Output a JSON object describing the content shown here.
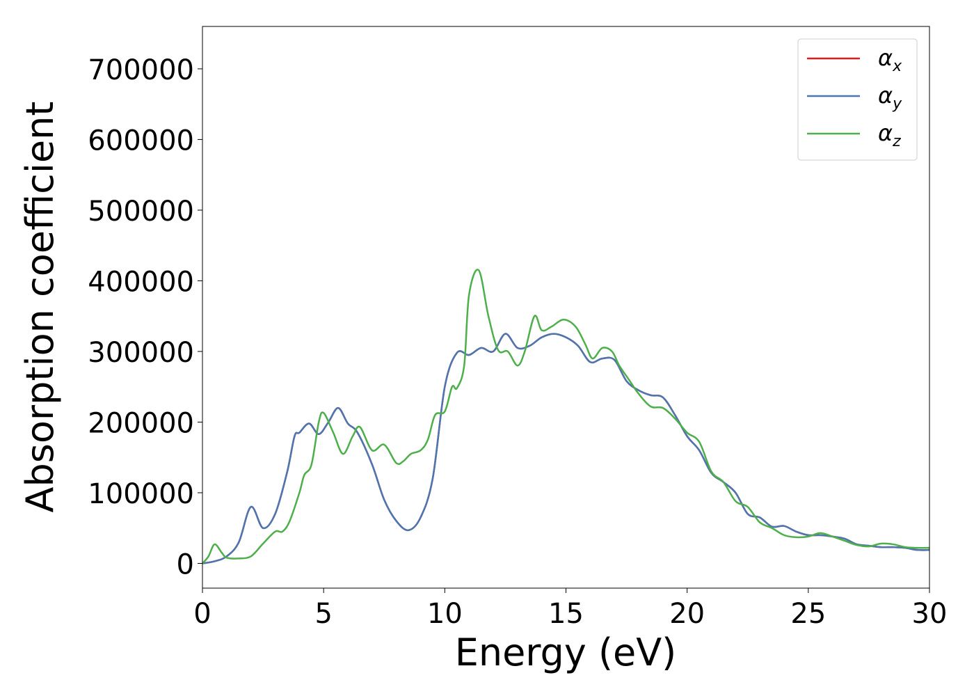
{
  "chart_data": {
    "type": "line",
    "xlabel": "Energy (eV)",
    "ylabel": "Absorption coefficient",
    "xlim": [
      0,
      30
    ],
    "ylim": [
      -35000,
      760000
    ],
    "xticks": [
      0,
      5,
      10,
      15,
      20,
      25,
      30
    ],
    "yticks": [
      0,
      100000,
      200000,
      300000,
      400000,
      500000,
      600000,
      700000
    ],
    "grid": false,
    "legend_position": "top-right",
    "series": [
      {
        "name": "α",
        "subscript": "x",
        "color": "#e41a1c",
        "x": [
          0,
          0.5,
          1,
          1.5,
          2,
          2.5,
          3,
          3.5,
          3.8,
          4,
          4.4,
          4.8,
          5.2,
          5.6,
          6,
          6.4,
          7,
          7.5,
          8,
          8.5,
          9,
          9.5,
          10,
          10.5,
          11,
          11.5,
          12,
          12.5,
          13,
          13.5,
          14,
          14.5,
          15,
          15.5,
          16,
          16.5,
          17,
          17.5,
          18,
          18.5,
          19,
          19.5,
          20,
          20.5,
          21,
          21.5,
          22,
          22.5,
          23,
          23.5,
          24,
          24.5,
          25,
          25.5,
          26,
          26.5,
          27,
          27.5,
          28,
          28.5,
          29,
          29.5,
          30
        ],
        "values": [
          0,
          3000,
          10000,
          30000,
          80000,
          50000,
          70000,
          130000,
          180000,
          185000,
          198000,
          183000,
          200000,
          220000,
          198000,
          185000,
          140000,
          90000,
          60000,
          47000,
          65000,
          120000,
          250000,
          298000,
          295000,
          305000,
          300000,
          325000,
          305000,
          308000,
          320000,
          325000,
          320000,
          308000,
          285000,
          290000,
          288000,
          258000,
          245000,
          238000,
          235000,
          210000,
          180000,
          160000,
          128000,
          115000,
          100000,
          70000,
          65000,
          52000,
          53000,
          45000,
          40000,
          40000,
          38000,
          35000,
          27000,
          25000,
          23000,
          23000,
          22000,
          19000,
          19000
        ]
      },
      {
        "name": "α",
        "subscript": "y",
        "color": "#4a77b2",
        "x": [
          0,
          0.5,
          1,
          1.5,
          2,
          2.5,
          3,
          3.5,
          3.8,
          4,
          4.4,
          4.8,
          5.2,
          5.6,
          6,
          6.4,
          7,
          7.5,
          8,
          8.5,
          9,
          9.5,
          10,
          10.5,
          11,
          11.5,
          12,
          12.5,
          13,
          13.5,
          14,
          14.5,
          15,
          15.5,
          16,
          16.5,
          17,
          17.5,
          18,
          18.5,
          19,
          19.5,
          20,
          20.5,
          21,
          21.5,
          22,
          22.5,
          23,
          23.5,
          24,
          24.5,
          25,
          25.5,
          26,
          26.5,
          27,
          27.5,
          28,
          28.5,
          29,
          29.5,
          30
        ],
        "values": [
          0,
          3000,
          10000,
          30000,
          80000,
          50000,
          70000,
          130000,
          180000,
          185000,
          198000,
          183000,
          200000,
          220000,
          198000,
          185000,
          140000,
          90000,
          60000,
          47000,
          65000,
          120000,
          250000,
          298000,
          295000,
          305000,
          300000,
          325000,
          305000,
          308000,
          320000,
          325000,
          320000,
          308000,
          285000,
          290000,
          288000,
          258000,
          245000,
          238000,
          235000,
          210000,
          180000,
          160000,
          128000,
          115000,
          100000,
          70000,
          65000,
          52000,
          53000,
          45000,
          40000,
          40000,
          38000,
          35000,
          27000,
          25000,
          23000,
          23000,
          22000,
          19000,
          19000
        ]
      },
      {
        "name": "α",
        "subscript": "z",
        "color": "#4daf4a",
        "x": [
          0,
          0.25,
          0.5,
          0.8,
          1,
          1.5,
          2,
          2.5,
          3,
          3.3,
          3.6,
          4,
          4.2,
          4.5,
          4.8,
          5,
          5.4,
          5.8,
          6.2,
          6.5,
          7,
          7.5,
          8,
          8.3,
          8.6,
          9,
          9.3,
          9.6,
          10,
          10.3,
          10.5,
          10.8,
          11,
          11.4,
          11.8,
          12.2,
          12.6,
          13,
          13.3,
          13.7,
          14,
          14.4,
          14.9,
          15.4,
          15.8,
          16.1,
          16.5,
          16.9,
          17.2,
          17.6,
          18,
          18.5,
          19,
          19.5,
          20,
          20.5,
          21,
          21.5,
          22,
          22.5,
          23,
          23.5,
          24,
          24.5,
          25,
          25.5,
          26,
          26.5,
          27,
          27.5,
          28,
          28.5,
          29,
          29.5,
          30
        ],
        "values": [
          0,
          10000,
          27000,
          15000,
          8000,
          7000,
          10000,
          28000,
          45000,
          45000,
          60000,
          100000,
          125000,
          140000,
          200000,
          213000,
          185000,
          155000,
          180000,
          193000,
          160000,
          168000,
          142000,
          145000,
          155000,
          160000,
          175000,
          210000,
          215000,
          250000,
          248000,
          280000,
          380000,
          415000,
          350000,
          302000,
          300000,
          280000,
          300000,
          350000,
          330000,
          335000,
          345000,
          335000,
          310000,
          290000,
          305000,
          300000,
          280000,
          260000,
          240000,
          222000,
          220000,
          205000,
          185000,
          172000,
          130000,
          115000,
          88000,
          80000,
          58000,
          50000,
          40000,
          37000,
          38000,
          43000,
          38000,
          32000,
          26000,
          24000,
          28000,
          27000,
          23000,
          22000,
          22000
        ]
      }
    ]
  }
}
